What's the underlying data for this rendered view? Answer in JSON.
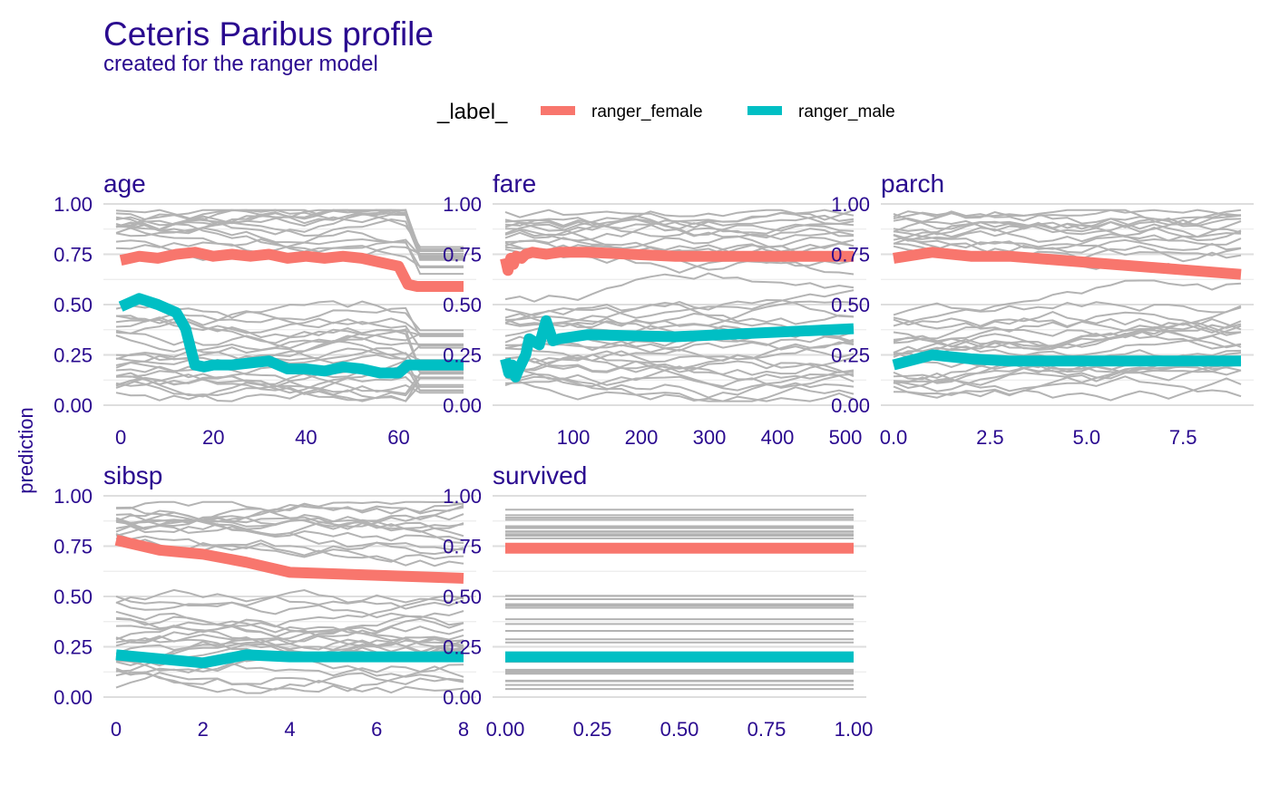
{
  "chart_data": {
    "type": "line",
    "title": "Ceteris Paribus profile",
    "subtitle": "created for the ranger model",
    "ylabel": "prediction",
    "legend": {
      "title": "_label_",
      "placement": "top",
      "entries": [
        {
          "name": "ranger_female",
          "color": "#F8766D"
        },
        {
          "name": "ranger_male",
          "color": "#00BFC4"
        }
      ]
    },
    "grid": true,
    "background_line_color": "#b3b3b3",
    "ylim": [
      0,
      1
    ],
    "y_ticks": [
      0,
      0.25,
      0.5,
      0.75,
      1
    ],
    "y_tick_labels": [
      "0.00",
      "0.25",
      "0.50",
      "0.75",
      "1.00"
    ],
    "panels": [
      {
        "variable": "age",
        "xlim": [
          -1,
          74
        ],
        "x_ticks": [
          0,
          20,
          40,
          60
        ],
        "x_tick_labels": [
          "0",
          "20",
          "40",
          "60"
        ],
        "series": [
          {
            "label": "ranger_female",
            "x": [
              0,
              4,
              8,
              12,
              16,
              20,
              24,
              28,
              32,
              36,
              40,
              44,
              48,
              52,
              56,
              60,
              62,
              64,
              74
            ],
            "y": [
              0.72,
              0.74,
              0.73,
              0.75,
              0.76,
              0.74,
              0.75,
              0.74,
              0.75,
              0.73,
              0.74,
              0.73,
              0.74,
              0.73,
              0.71,
              0.69,
              0.6,
              0.59,
              0.59
            ]
          },
          {
            "label": "ranger_male",
            "x": [
              0,
              4,
              8,
              12,
              14,
              16,
              18,
              20,
              24,
              28,
              32,
              36,
              40,
              44,
              48,
              52,
              56,
              60,
              62,
              64,
              74
            ],
            "y": [
              0.49,
              0.53,
              0.5,
              0.46,
              0.38,
              0.2,
              0.19,
              0.2,
              0.2,
              0.21,
              0.22,
              0.18,
              0.18,
              0.17,
              0.19,
              0.18,
              0.16,
              0.16,
              0.2,
              0.2,
              0.2
            ]
          }
        ]
      },
      {
        "variable": "fare",
        "xlim": [
          0,
          512
        ],
        "x_ticks": [
          100,
          200,
          300,
          400,
          500
        ],
        "x_tick_labels": [
          "100",
          "200",
          "300",
          "400",
          "500"
        ],
        "series": [
          {
            "label": "ranger_female",
            "x": [
              0,
              4,
              8,
              12,
              16,
              24,
              30,
              40,
              60,
              80,
              120,
              250,
              512
            ],
            "y": [
              0.73,
              0.67,
              0.73,
              0.7,
              0.74,
              0.73,
              0.75,
              0.76,
              0.75,
              0.76,
              0.76,
              0.74,
              0.74
            ]
          },
          {
            "label": "ranger_male",
            "x": [
              0,
              5,
              10,
              15,
              20,
              30,
              35,
              50,
              60,
              70,
              80,
              120,
              250,
              512
            ],
            "y": [
              0.23,
              0.16,
              0.2,
              0.14,
              0.18,
              0.25,
              0.33,
              0.3,
              0.42,
              0.32,
              0.33,
              0.35,
              0.34,
              0.38
            ]
          }
        ]
      },
      {
        "variable": "parch",
        "xlim": [
          0,
          9
        ],
        "x_ticks": [
          0,
          2.5,
          5,
          7.5
        ],
        "x_tick_labels": [
          "0.0",
          "2.5",
          "5.0",
          "7.5"
        ],
        "series": [
          {
            "label": "ranger_female",
            "x": [
              0,
              1,
              2,
              3,
              9
            ],
            "y": [
              0.73,
              0.76,
              0.74,
              0.74,
              0.65
            ]
          },
          {
            "label": "ranger_male",
            "x": [
              0,
              1,
              2,
              3,
              9
            ],
            "y": [
              0.2,
              0.25,
              0.23,
              0.22,
              0.22
            ]
          }
        ]
      },
      {
        "variable": "sibsp",
        "xlim": [
          0,
          8
        ],
        "x_ticks": [
          0,
          2,
          4,
          6,
          8
        ],
        "x_tick_labels": [
          "0",
          "2",
          "4",
          "6",
          "8"
        ],
        "series": [
          {
            "label": "ranger_female",
            "x": [
              0,
              1,
              2,
              3,
              4,
              8
            ],
            "y": [
              0.78,
              0.73,
              0.71,
              0.67,
              0.62,
              0.59
            ]
          },
          {
            "label": "ranger_male",
            "x": [
              0,
              1,
              2,
              3,
              4,
              8
            ],
            "y": [
              0.21,
              0.19,
              0.17,
              0.21,
              0.2,
              0.2
            ]
          }
        ]
      },
      {
        "variable": "survived",
        "xlim": [
          0,
          1
        ],
        "x_ticks": [
          0,
          0.25,
          0.5,
          0.75,
          1
        ],
        "x_tick_labels": [
          "0.00",
          "0.25",
          "0.50",
          "0.75",
          "1.00"
        ],
        "series": [
          {
            "label": "ranger_female",
            "x": [
              0,
              1
            ],
            "y": [
              0.74,
              0.74
            ]
          },
          {
            "label": "ranger_male",
            "x": [
              0,
              1
            ],
            "y": [
              0.2,
              0.2
            ]
          }
        ]
      }
    ]
  }
}
